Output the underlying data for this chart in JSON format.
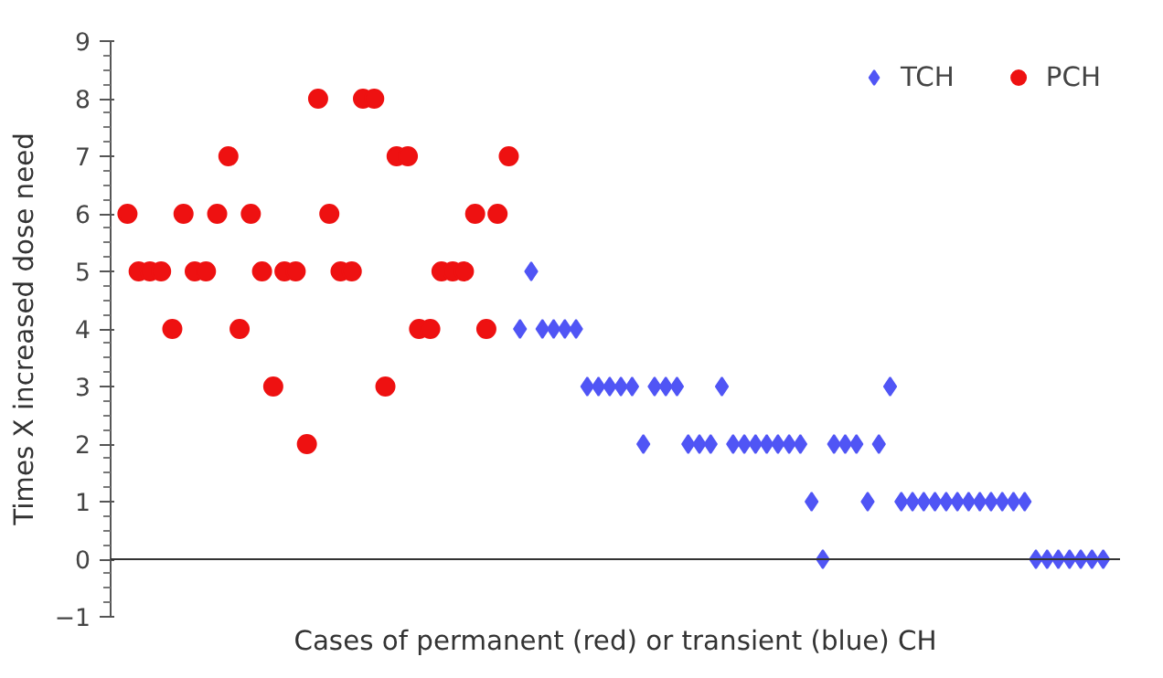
{
  "chart_data": {
    "type": "scatter",
    "xlabel": "Cases of permanent (red) or transient (blue) CH",
    "ylabel": "Times X increased dose need",
    "categories": [
      null,
      null,
      null,
      null,
      null,
      null,
      null,
      null,
      null,
      null,
      null,
      null,
      null,
      null,
      null,
      null,
      null,
      null,
      null,
      null,
      null,
      null,
      null,
      null,
      null,
      null,
      null,
      null,
      null,
      null,
      null,
      null,
      null,
      null,
      null,
      null,
      null,
      null,
      null,
      null,
      null,
      null,
      null,
      null,
      null,
      null,
      null,
      null,
      null,
      null,
      null,
      null,
      null,
      null,
      null,
      null,
      null,
      null,
      null,
      null,
      null,
      null,
      null,
      null,
      null,
      null,
      null,
      null,
      null,
      null,
      null,
      null,
      null,
      null,
      null,
      null,
      null,
      null,
      null,
      null,
      null,
      null,
      null,
      null,
      null,
      null,
      null,
      null,
      null,
      null
    ],
    "series": [
      {
        "name": "TCH",
        "color": "#5055f5",
        "marker": "diamond",
        "values": [
          null,
          null,
          null,
          null,
          null,
          null,
          null,
          null,
          null,
          null,
          null,
          null,
          null,
          null,
          null,
          null,
          null,
          null,
          null,
          null,
          null,
          null,
          null,
          null,
          null,
          null,
          null,
          null,
          null,
          null,
          null,
          null,
          null,
          null,
          null,
          null,
          4,
          5,
          4,
          4,
          4,
          4,
          3,
          3,
          3,
          3,
          3,
          2,
          3,
          3,
          3,
          2,
          2,
          2,
          3,
          2,
          2,
          2,
          2,
          2,
          2,
          2,
          1,
          0,
          2,
          2,
          2,
          1,
          2,
          3,
          1,
          1,
          1,
          1,
          1,
          1,
          1,
          1,
          1,
          1,
          1,
          1,
          0,
          0,
          0,
          0,
          0,
          0,
          0,
          null
        ]
      },
      {
        "name": "PCH",
        "color": "#ee1111",
        "marker": "circle",
        "values": [
          null,
          6,
          5,
          5,
          5,
          4,
          6,
          5,
          5,
          6,
          7,
          4,
          6,
          5,
          3,
          5,
          5,
          2,
          8,
          6,
          5,
          5,
          8,
          8,
          3,
          7,
          7,
          4,
          4,
          5,
          5,
          5,
          6,
          4,
          6,
          7,
          null,
          null,
          null,
          null,
          null,
          null,
          null,
          null,
          null,
          null,
          null,
          null,
          null,
          null,
          null,
          null,
          null,
          null,
          null,
          null,
          null,
          null,
          null,
          null,
          null,
          null,
          null,
          null,
          null,
          null,
          null,
          null,
          null,
          null,
          null,
          null,
          null,
          null,
          null,
          null,
          null,
          null,
          null,
          null,
          null,
          null,
          null,
          null,
          null,
          null,
          null,
          null,
          null,
          null
        ]
      }
    ],
    "ylim": [
      -1,
      9
    ],
    "yticks": [
      -1,
      0,
      1,
      2,
      3,
      4,
      5,
      6,
      7,
      8,
      9
    ],
    "ref_lines": [
      {
        "axis": "y",
        "value": 0,
        "color": "#333333"
      }
    ],
    "tick_labels": "y",
    "grid": false,
    "legend": "top right"
  }
}
